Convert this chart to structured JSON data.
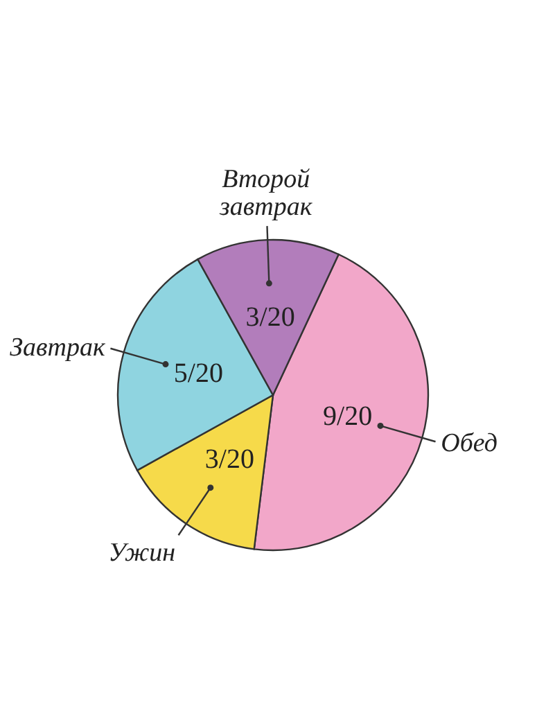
{
  "chart_data": {
    "type": "pie",
    "categories": [
      "Обед",
      "Ужин",
      "Завтрак",
      "Второй завтрак"
    ],
    "values": [
      45,
      15,
      25,
      15
    ],
    "value_labels": [
      "9/20",
      "3/20",
      "5/20",
      "3/20"
    ],
    "colors": [
      "#f2a7c9",
      "#f6da4a",
      "#8fd4e0",
      "#b27dbb"
    ],
    "legend": false
  }
}
